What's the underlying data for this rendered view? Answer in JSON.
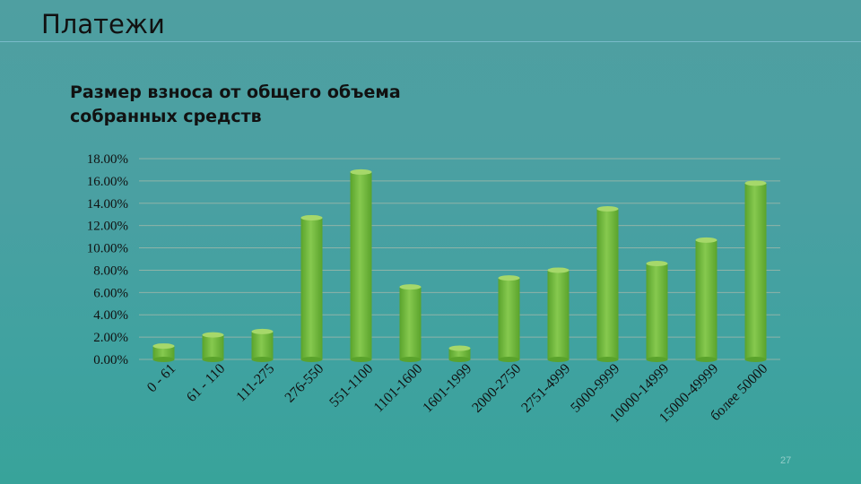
{
  "slide": {
    "title": "Платежи",
    "page_number": "27"
  },
  "chart_data": {
    "type": "bar",
    "title": "Размер взноса от общего объема собранных средств",
    "xlabel": "",
    "ylabel": "",
    "ylim": [
      0,
      18
    ],
    "y_ticks": [
      "18.00%",
      "16.00%",
      "14.00%",
      "12.00%",
      "10.00%",
      "8.00%",
      "6.00%",
      "4.00%",
      "2.00%",
      "0.00%"
    ],
    "categories": [
      "0 - 61",
      "61 - 110",
      "111-275",
      "276-550",
      "551-1100",
      "1101-1600",
      "1601-1999",
      "2000-2750",
      "2751-4999",
      "5000-9999",
      "10000-14999",
      "15000-49999",
      "более 50000"
    ],
    "values": [
      1.2,
      2.2,
      2.5,
      12.7,
      16.8,
      6.5,
      1.0,
      7.3,
      8.0,
      13.5,
      8.6,
      10.7,
      15.8
    ],
    "grid": true,
    "legend": "none",
    "colors": {
      "bar_body": "#7cc048",
      "bar_dark": "#5aa32c",
      "bar_top": "#a6d86a",
      "grid": "#8fb3a8"
    }
  }
}
